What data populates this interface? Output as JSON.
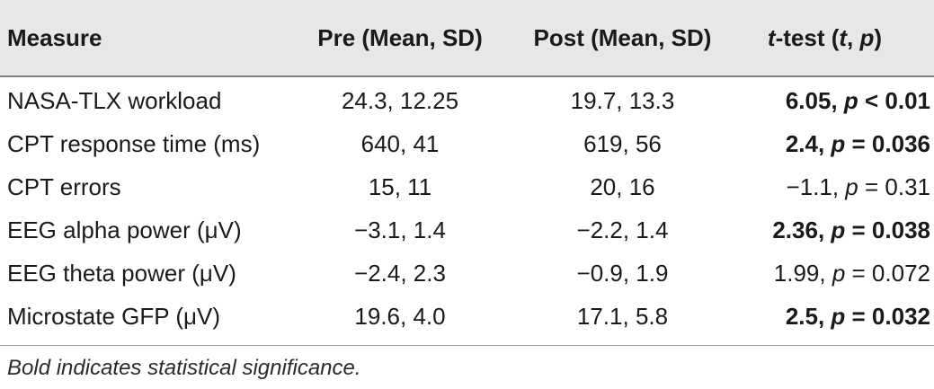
{
  "table": {
    "headers": [
      {
        "label": "Measure"
      },
      {
        "label": "Pre (Mean, SD)"
      },
      {
        "label": "Post (Mean, SD)"
      },
      {
        "label_t": "t",
        "label_rest": "-test (",
        "label_t2": "t",
        "label_sep": ", ",
        "label_p": "p",
        "label_close": ")"
      }
    ],
    "rows": [
      {
        "measure": "NASA-TLX workload",
        "pre": "24.3, 12.25",
        "post": "19.7, 13.3",
        "ttest_val": "6.05, ",
        "ttest_p": "p",
        "ttest_rest": " < 0.01",
        "significant": true
      },
      {
        "measure": "CPT response time (ms)",
        "pre": "640, 41",
        "post": "619, 56",
        "ttest_val": "2.4, ",
        "ttest_p": "p",
        "ttest_rest": " = 0.036",
        "significant": true
      },
      {
        "measure": "CPT errors",
        "pre": "15, 11",
        "post": "20, 16",
        "ttest_val": "−1.1, ",
        "ttest_p": "p",
        "ttest_rest": " = 0.31",
        "significant": false
      },
      {
        "measure": "EEG alpha power (μV)",
        "pre": "−3.1, 1.4",
        "post": "−2.2, 1.4",
        "ttest_val": "2.36, ",
        "ttest_p": "p",
        "ttest_rest": " = 0.038",
        "significant": true
      },
      {
        "measure": "EEG theta power (μV)",
        "pre": "−2.4, 2.3",
        "post": "−0.9, 1.9",
        "ttest_val": "1.99, ",
        "ttest_p": "p",
        "ttest_rest": " = 0.072",
        "significant": false
      },
      {
        "measure": "Microstate GFP (μV)",
        "pre": "19.6, 4.0",
        "post": "17.1, 5.8",
        "ttest_val": "2.5, ",
        "ttest_p": "p",
        "ttest_rest": " = 0.032",
        "significant": true
      }
    ],
    "footnote": "Bold indicates statistical significance."
  }
}
